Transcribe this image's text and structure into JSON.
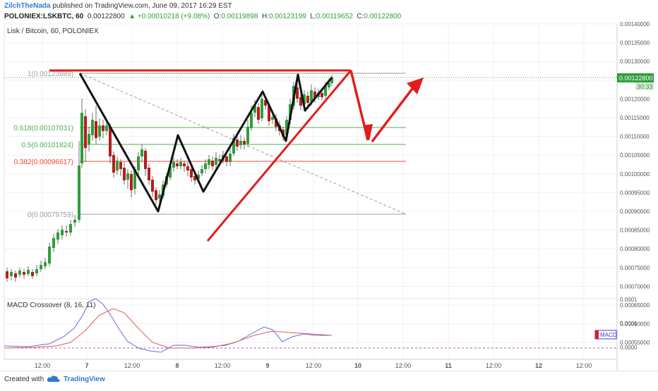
{
  "header": {
    "author": "ZilchTheNada",
    "published": "published on TradingView.com, June 09, 2017 16:29 EST",
    "symbol": "POLONIEX:LSKBTC, 60",
    "last": "0.00122800",
    "change": "▲ +0.00010218 (+9.08%)",
    "ohlc_o_label": "O:",
    "ohlc_o": "0.00119898",
    "ohlc_h_label": "H:",
    "ohlc_h": "0.00123199",
    "ohlc_l_label": "L:",
    "ohlc_l": "0.00119652",
    "ohlc_c_label": "C:",
    "ohlc_c": "0.00122800"
  },
  "main_pane": {
    "title": "Lisk / Bitcoin, 60, POLONIEX",
    "price_axis": [
      "0.00140000",
      "0.00135000",
      "0.00130000",
      "0.00125000",
      "0.00120000",
      "0.00115000",
      "0.00110000",
      "0.00105000",
      "0.00100000",
      "0.00095000",
      "0.00090000",
      "0.00085000",
      "0.00080000",
      "0.00075000",
      "0.00070000",
      "0.00065000",
      "0.00060000",
      "0.00055000"
    ],
    "last_price_tag": "0.00122800",
    "countdown_tag": "30:33",
    "fib_levels": [
      {
        "label": "1(0.00123889)",
        "value": 0.00123889,
        "color": "#9e9e9e"
      },
      {
        "label": "0.618(0.00107031)",
        "value": 0.00107031,
        "color": "#4caf50"
      },
      {
        "label": "0.5(0.00101824)",
        "value": 0.00101824,
        "color": "#4caf50"
      },
      {
        "label": "0.382(0.00096617)",
        "value": 0.00096617,
        "color": "#f44336"
      },
      {
        "label": "0(0.00079759)",
        "value": 0.00079759,
        "color": "#9e9e9e"
      }
    ]
  },
  "macd_pane": {
    "title": "MACD Crossover (8, 16, 11)",
    "axis": [
      "0.0001",
      "0.0001",
      "0.0000"
    ],
    "tag": "MACD"
  },
  "time_axis": [
    "12:00",
    "7",
    "12:00",
    "8",
    "12:00",
    "9",
    "12:00",
    "10",
    "12:00",
    "11",
    "12:00",
    "12",
    "12:00"
  ],
  "footer": {
    "created_with": "Created with",
    "brand": "TradingView"
  },
  "colors": {
    "up": "#2e9e3a",
    "down": "#b71c1c",
    "pattern_black": "#111111",
    "pattern_red": "#e11d1d",
    "macd_blue": "#5b5bd6",
    "signal_red": "#e05a5a"
  }
}
